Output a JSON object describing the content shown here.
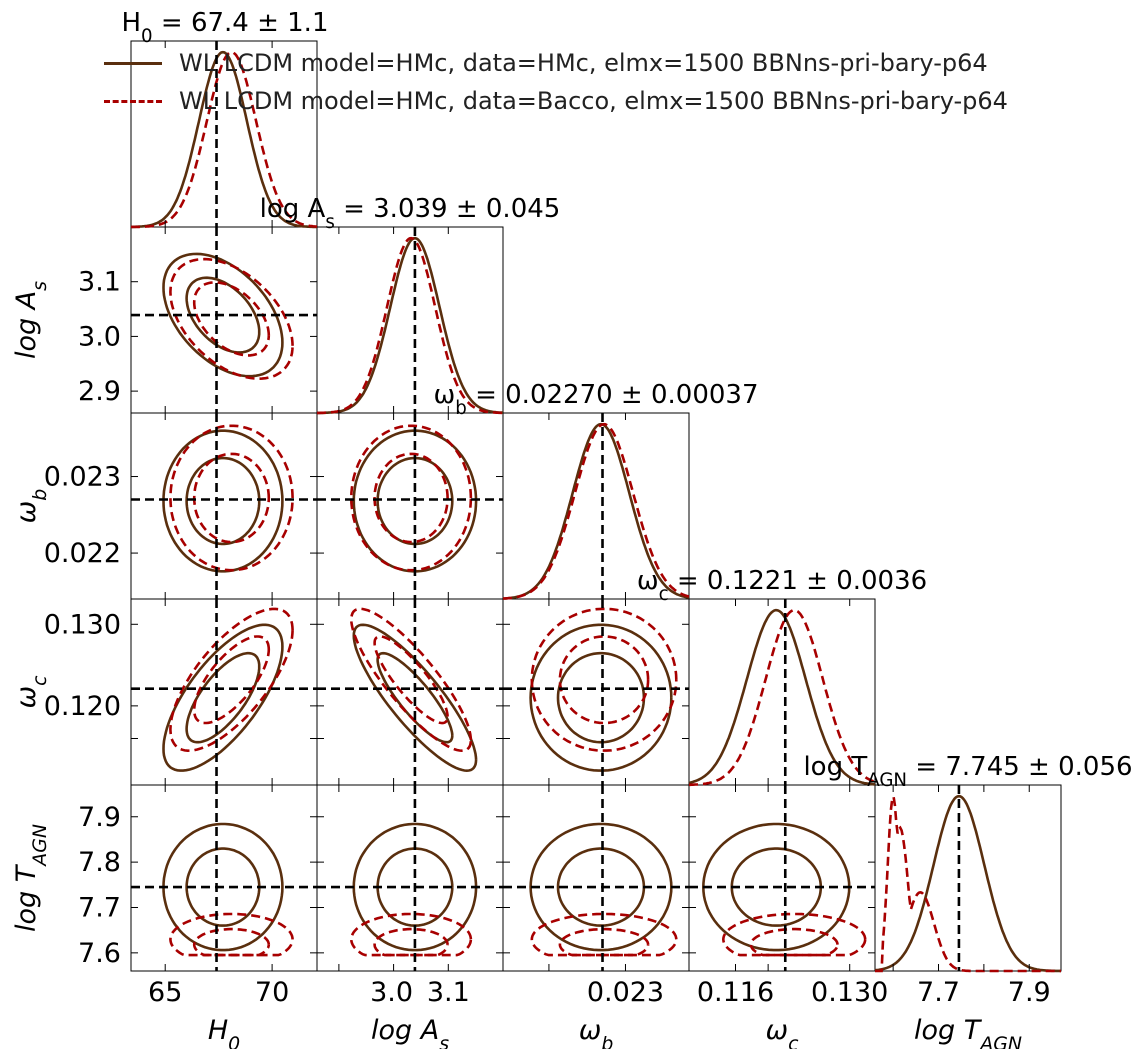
{
  "chart_data": {
    "type": "corner",
    "parameters": [
      {
        "name": "H0",
        "label": "H_0",
        "range": [
          63.4,
          72.1
        ],
        "ticks": [
          65,
          70
        ],
        "tick_labels": [
          "65",
          "70"
        ],
        "truth": 67.4,
        "title": "H_0 = 67.4 ± 1.1"
      },
      {
        "name": "logAs",
        "label": "log A_s",
        "range": [
          2.86,
          3.2
        ],
        "ticks": [
          2.9,
          3.0,
          3.1
        ],
        "tick_labels": [
          "2.9",
          "3.0",
          "3.1"
        ],
        "truth": 3.039,
        "title": "log A_s = 3.039 ± 0.045"
      },
      {
        "name": "omega_b",
        "label": "ω_b",
        "range": [
          0.0214,
          0.02383
        ],
        "ticks": [
          0.022,
          0.023
        ],
        "tick_labels": [
          "0.022",
          "0.023"
        ],
        "truth": 0.0227,
        "title": "ω_b = 0.02270 ± 0.00037"
      },
      {
        "name": "omega_c",
        "label": "ω_c",
        "range": [
          0.1103,
          0.1331
        ],
        "ticks": [
          0.116,
          0.12,
          0.13
        ],
        "tick_labels": [
          "0.116",
          "0.120",
          "0.130"
        ],
        "truth": 0.1221,
        "title": "ω_c = 0.1221 ± 0.0036"
      },
      {
        "name": "logTAGN",
        "label": "log T_AGN",
        "range": [
          7.56,
          7.97
        ],
        "ticks": [
          7.6,
          7.7,
          7.8,
          7.9
        ],
        "tick_labels": [
          "7.6",
          "7.7",
          "7.8",
          "7.9"
        ],
        "truth": 7.745,
        "title": "log T_AGN = 7.745 ± 0.056"
      }
    ],
    "x_tick_values": [
      [
        "65",
        "70"
      ],
      [
        "3.0",
        "3.1"
      ],
      [
        "0.023"
      ],
      [
        "0.116",
        "0.130"
      ],
      [
        "7.7",
        "7.9"
      ]
    ],
    "y_tick_values": [
      [],
      [
        "2.9",
        "3.0",
        "3.1"
      ],
      [
        "0.022",
        "0.023"
      ],
      [
        "0.120",
        "0.130"
      ],
      [
        "7.6",
        "7.7",
        "7.8",
        "7.9"
      ]
    ],
    "series": [
      {
        "name": "WL LCDM model=HMc,  data=HMc, elmx=1500 BBNns-pri-bary-p64",
        "color": "#5a2f0e",
        "dash": "solid",
        "mean": [
          67.7,
          3.039,
          0.02268,
          0.121,
          7.745
        ],
        "sigma": [
          1.12,
          0.045,
          0.00037,
          0.0036,
          0.056
        ],
        "corr": [
          [
            1,
            -0.45,
            0.0,
            0.7,
            0.0
          ],
          [
            -0.45,
            1,
            0.0,
            -0.85,
            0.0
          ],
          [
            0.0,
            0.0,
            1,
            0.0,
            0.0
          ],
          [
            0.7,
            -0.85,
            0.0,
            1,
            0.0
          ],
          [
            0.0,
            0.0,
            0.0,
            0.0,
            1
          ]
        ]
      },
      {
        "name": "WL LCDM model=HMc,  data=Bacco, elmx=1500 BBNns-pri-bary-p64",
        "color": "#a80000",
        "dash": "dashed",
        "mean": [
          68.1,
          3.032,
          0.02272,
          0.1232,
          7.63
        ],
        "sigma": [
          1.15,
          0.044,
          0.00038,
          0.0035,
          0.025
        ],
        "corr": [
          [
            1,
            -0.45,
            0.0,
            0.7,
            0.0
          ],
          [
            -0.45,
            1,
            0.0,
            -0.85,
            0.0
          ],
          [
            0.0,
            0.0,
            1,
            0.0,
            0.0
          ],
          [
            0.7,
            -0.85,
            0.0,
            1,
            0.0
          ],
          [
            0.0,
            0.0,
            0.0,
            0.0,
            1
          ]
        ],
        "tagn_skew_peak": 7.6
      }
    ],
    "legend": [
      {
        "label": "WL LCDM model=HMc,  data=HMc, elmx=1500 BBNns-pri-bary-p64",
        "color": "#5a2f0e",
        "dash": "solid"
      },
      {
        "label": "WL LCDM model=HMc,  data=Bacco, elmx=1500 BBNns-pri-bary-p64",
        "color": "#a80000",
        "dash": "dashed"
      }
    ],
    "truth_line_color": "#000000",
    "legend_position": "top"
  }
}
